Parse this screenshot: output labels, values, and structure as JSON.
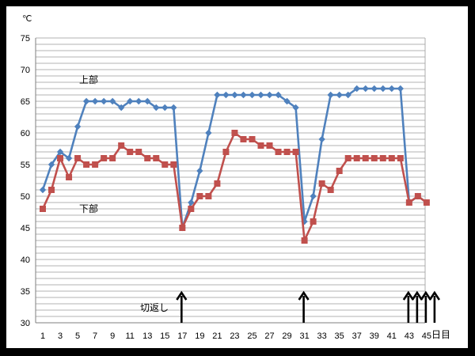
{
  "chart_data": {
    "type": "line",
    "unit_label": "℃",
    "xlabel": "日目",
    "ylim": [
      30,
      75
    ],
    "y_ticks": [
      30,
      35,
      40,
      45,
      50,
      55,
      60,
      65,
      70,
      75
    ],
    "x_ticks": [
      1,
      3,
      5,
      7,
      9,
      11,
      13,
      15,
      17,
      19,
      21,
      23,
      25,
      27,
      29,
      31,
      33,
      35,
      37,
      39,
      41,
      43,
      45
    ],
    "xlim": [
      1,
      45
    ],
    "grid": true,
    "x": [
      1,
      2,
      3,
      4,
      5,
      6,
      7,
      8,
      9,
      10,
      11,
      12,
      13,
      14,
      15,
      16,
      17,
      18,
      19,
      20,
      21,
      22,
      23,
      24,
      25,
      26,
      27,
      28,
      29,
      30,
      31,
      32,
      33,
      34,
      35,
      36,
      37,
      38,
      39,
      40,
      41,
      42,
      43,
      44,
      45
    ],
    "series": [
      {
        "name": "上部",
        "color": "#4f81bd",
        "marker": "diamond",
        "values": [
          51,
          55,
          57,
          56,
          61,
          65,
          65,
          65,
          65,
          64,
          65,
          65,
          65,
          64,
          64,
          64,
          45,
          49,
          54,
          60,
          66,
          66,
          66,
          66,
          66,
          66,
          66,
          66,
          65,
          64,
          46,
          50,
          59,
          66,
          66,
          66,
          67,
          67,
          67,
          67,
          67,
          67,
          49,
          50,
          49
        ]
      },
      {
        "name": "下部",
        "color": "#c0504d",
        "marker": "square",
        "values": [
          48,
          51,
          56,
          53,
          56,
          55,
          55,
          56,
          56,
          58,
          57,
          57,
          56,
          56,
          55,
          55,
          45,
          48,
          50,
          50,
          52,
          57,
          60,
          59,
          59,
          58,
          58,
          57,
          57,
          57,
          43,
          46,
          52,
          51,
          54,
          56,
          56,
          56,
          56,
          56,
          56,
          56,
          49,
          50,
          49
        ]
      }
    ],
    "annotations": [
      {
        "label": "切返し",
        "days": [
          17,
          31,
          43,
          44,
          45,
          46
        ]
      }
    ]
  }
}
